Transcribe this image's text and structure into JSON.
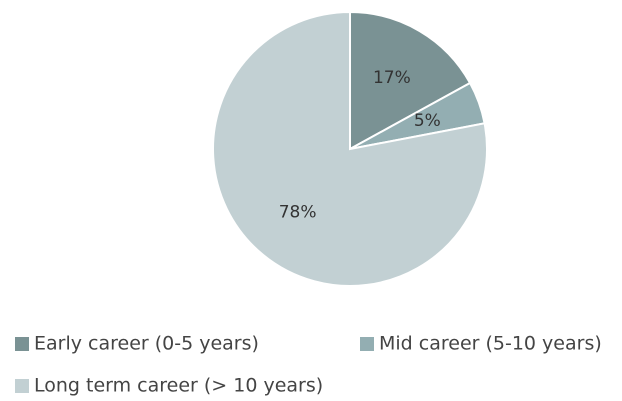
{
  "chart_data": {
    "type": "pie",
    "categories": [
      "Early career (0-5 years)",
      "Mid career (5-10 years)",
      "Long term career (> 10 years)"
    ],
    "values": [
      17,
      5,
      78
    ],
    "value_labels": [
      "17%",
      "5%",
      "78%"
    ],
    "colors": [
      "#7a9294",
      "#93aeb2",
      "#c2d0d3"
    ]
  }
}
